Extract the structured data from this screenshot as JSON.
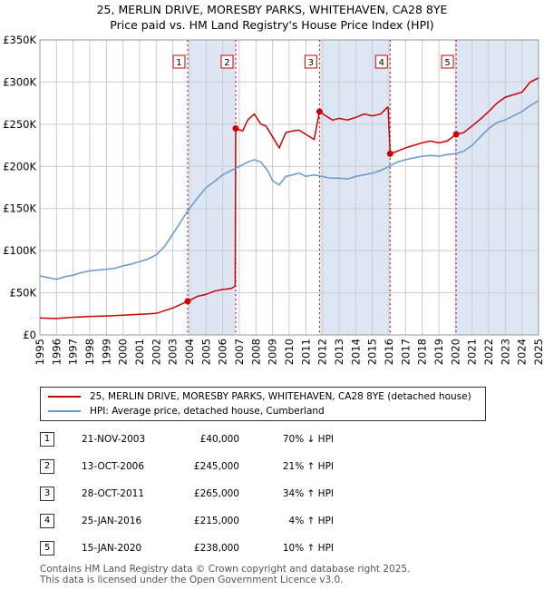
{
  "title_line1": "25, MERLIN DRIVE, MORESBY PARKS, WHITEHAVEN, CA28 8YE",
  "title_line2": "Price paid vs. HM Land Registry's House Price Index (HPI)",
  "colors": {
    "property": "#cc0000",
    "hpi": "#6699cc",
    "shade": "#dde6f5",
    "grid": "#cccccc"
  },
  "chart_data": {
    "type": "line",
    "xlim": [
      1995,
      2025
    ],
    "ylim": [
      0,
      350000
    ],
    "y_ticks": [
      {
        "value": 0,
        "label": "£0"
      },
      {
        "value": 50000,
        "label": "£50K"
      },
      {
        "value": 100000,
        "label": "£100K"
      },
      {
        "value": 150000,
        "label": "£150K"
      },
      {
        "value": 200000,
        "label": "£200K"
      },
      {
        "value": 250000,
        "label": "£250K"
      },
      {
        "value": 300000,
        "label": "£300K"
      },
      {
        "value": 350000,
        "label": "£350K"
      }
    ],
    "x_ticks": [
      "1995",
      "1996",
      "1997",
      "1998",
      "1999",
      "2000",
      "2001",
      "2002",
      "2003",
      "2004",
      "2005",
      "2006",
      "2007",
      "2008",
      "2009",
      "2010",
      "2011",
      "2012",
      "2013",
      "2014",
      "2015",
      "2016",
      "2017",
      "2018",
      "2019",
      "2020",
      "2021",
      "2022",
      "2023",
      "2024",
      "2025"
    ],
    "series": [
      {
        "name": "25, MERLIN DRIVE, MORESBY PARKS, WHITEHAVEN, CA28 8YE (detached house)",
        "color": "#cc0000",
        "points": [
          [
            1995.0,
            20000
          ],
          [
            1996.0,
            19500
          ],
          [
            1997.0,
            21000
          ],
          [
            1998.0,
            22000
          ],
          [
            1999.0,
            22500
          ],
          [
            2000.0,
            23500
          ],
          [
            2001.0,
            24500
          ],
          [
            2002.0,
            25500
          ],
          [
            2003.0,
            32000
          ],
          [
            2003.89,
            40000
          ],
          [
            2004.5,
            46000
          ],
          [
            2005.0,
            48000
          ],
          [
            2005.5,
            52000
          ],
          [
            2006.0,
            54000
          ],
          [
            2006.5,
            55000
          ],
          [
            2006.75,
            58000
          ],
          [
            2006.78,
            245000
          ],
          [
            2007.2,
            242000
          ],
          [
            2007.5,
            255000
          ],
          [
            2007.9,
            262000
          ],
          [
            2008.3,
            250000
          ],
          [
            2008.6,
            248000
          ],
          [
            2009.0,
            235000
          ],
          [
            2009.4,
            222000
          ],
          [
            2009.8,
            240000
          ],
          [
            2010.2,
            242000
          ],
          [
            2010.6,
            243000
          ],
          [
            2011.0,
            238000
          ],
          [
            2011.5,
            232000
          ],
          [
            2011.82,
            265000
          ],
          [
            2012.2,
            260000
          ],
          [
            2012.6,
            255000
          ],
          [
            2013.0,
            257000
          ],
          [
            2013.5,
            255000
          ],
          [
            2014.0,
            258000
          ],
          [
            2014.5,
            262000
          ],
          [
            2015.0,
            260000
          ],
          [
            2015.5,
            262000
          ],
          [
            2015.9,
            270000
          ],
          [
            2015.95,
            270000
          ],
          [
            2016.07,
            215000
          ],
          [
            2016.5,
            218000
          ],
          [
            2017.0,
            222000
          ],
          [
            2017.5,
            225000
          ],
          [
            2018.0,
            228000
          ],
          [
            2018.5,
            230000
          ],
          [
            2019.0,
            228000
          ],
          [
            2019.5,
            230000
          ],
          [
            2020.04,
            238000
          ],
          [
            2020.5,
            240000
          ],
          [
            2021.0,
            248000
          ],
          [
            2021.5,
            256000
          ],
          [
            2022.0,
            265000
          ],
          [
            2022.5,
            275000
          ],
          [
            2023.0,
            282000
          ],
          [
            2023.5,
            285000
          ],
          [
            2024.0,
            288000
          ],
          [
            2024.5,
            300000
          ],
          [
            2025.0,
            305000
          ]
        ]
      },
      {
        "name": "HPI: Average price, detached house, Cumberland",
        "color": "#6699cc",
        "points": [
          [
            1995.0,
            70000
          ],
          [
            1995.5,
            68000
          ],
          [
            1996.0,
            66000
          ],
          [
            1996.5,
            69000
          ],
          [
            1997.0,
            71000
          ],
          [
            1997.5,
            74000
          ],
          [
            1998.0,
            76000
          ],
          [
            1998.5,
            77000
          ],
          [
            1999.0,
            78000
          ],
          [
            1999.5,
            79000
          ],
          [
            2000.0,
            82000
          ],
          [
            2000.5,
            84000
          ],
          [
            2001.0,
            87000
          ],
          [
            2001.5,
            90000
          ],
          [
            2002.0,
            95000
          ],
          [
            2002.5,
            105000
          ],
          [
            2003.0,
            120000
          ],
          [
            2003.5,
            135000
          ],
          [
            2004.0,
            150000
          ],
          [
            2004.5,
            163000
          ],
          [
            2005.0,
            175000
          ],
          [
            2005.5,
            182000
          ],
          [
            2006.0,
            190000
          ],
          [
            2006.5,
            195000
          ],
          [
            2007.0,
            200000
          ],
          [
            2007.5,
            205000
          ],
          [
            2007.9,
            208000
          ],
          [
            2008.3,
            205000
          ],
          [
            2008.7,
            195000
          ],
          [
            2009.0,
            183000
          ],
          [
            2009.4,
            178000
          ],
          [
            2009.8,
            188000
          ],
          [
            2010.2,
            190000
          ],
          [
            2010.6,
            192000
          ],
          [
            2011.0,
            188000
          ],
          [
            2011.5,
            190000
          ],
          [
            2012.0,
            188000
          ],
          [
            2012.5,
            186000
          ],
          [
            2013.0,
            186000
          ],
          [
            2013.5,
            185000
          ],
          [
            2014.0,
            188000
          ],
          [
            2014.5,
            190000
          ],
          [
            2015.0,
            192000
          ],
          [
            2015.5,
            195000
          ],
          [
            2016.0,
            200000
          ],
          [
            2016.5,
            205000
          ],
          [
            2017.0,
            208000
          ],
          [
            2017.5,
            210000
          ],
          [
            2018.0,
            212000
          ],
          [
            2018.5,
            213000
          ],
          [
            2019.0,
            212000
          ],
          [
            2019.5,
            214000
          ],
          [
            2020.0,
            215000
          ],
          [
            2020.5,
            218000
          ],
          [
            2021.0,
            225000
          ],
          [
            2021.5,
            235000
          ],
          [
            2022.0,
            245000
          ],
          [
            2022.5,
            252000
          ],
          [
            2023.0,
            255000
          ],
          [
            2023.5,
            260000
          ],
          [
            2024.0,
            265000
          ],
          [
            2024.5,
            272000
          ],
          [
            2025.0,
            278000
          ]
        ]
      }
    ],
    "shaded_periods": [
      [
        2003.89,
        2006.78
      ],
      [
        2011.82,
        2016.07
      ],
      [
        2020.04,
        2025.0
      ]
    ],
    "markers": [
      {
        "label": "1",
        "x": 2003.89,
        "y": 40000
      },
      {
        "label": "2",
        "x": 2006.78,
        "y": 245000
      },
      {
        "label": "3",
        "x": 2011.82,
        "y": 265000
      },
      {
        "label": "4",
        "x": 2016.07,
        "y": 215000
      },
      {
        "label": "5",
        "x": 2020.04,
        "y": 238000
      }
    ]
  },
  "legend": {
    "property_label": "25, MERLIN DRIVE, MORESBY PARKS, WHITEHAVEN, CA28 8YE (detached house)",
    "hpi_label": "HPI: Average price, detached house, Cumberland"
  },
  "sales": [
    {
      "num": "1",
      "date": "21-NOV-2003",
      "price": "£40,000",
      "hpi": "70% ↓ HPI"
    },
    {
      "num": "2",
      "date": "13-OCT-2006",
      "price": "£245,000",
      "hpi": "21% ↑ HPI"
    },
    {
      "num": "3",
      "date": "28-OCT-2011",
      "price": "£265,000",
      "hpi": "34% ↑ HPI"
    },
    {
      "num": "4",
      "date": "25-JAN-2016",
      "price": "£215,000",
      "hpi": "4% ↑ HPI"
    },
    {
      "num": "5",
      "date": "15-JAN-2020",
      "price": "£238,000",
      "hpi": "10% ↑ HPI"
    }
  ],
  "footer_line1": "Contains HM Land Registry data © Crown copyright and database right 2025.",
  "footer_line2": "This data is licensed under the Open Government Licence v3.0."
}
